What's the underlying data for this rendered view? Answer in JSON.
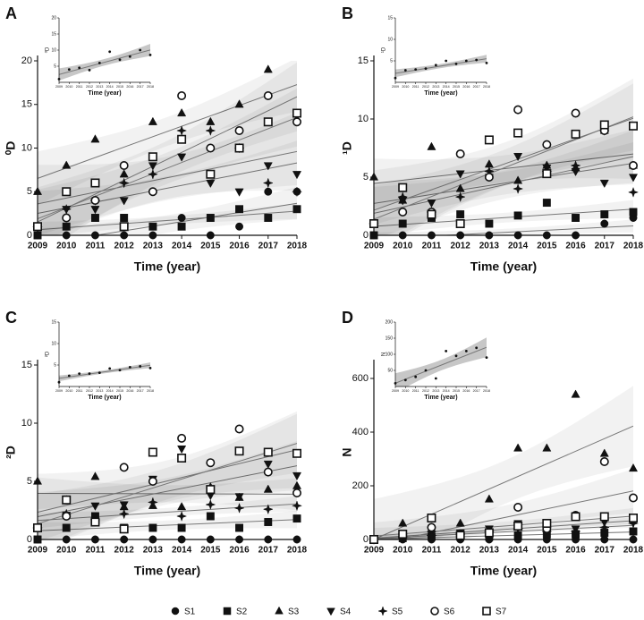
{
  "legend": [
    {
      "name": "S1",
      "marker": "circle",
      "color": "#111111"
    },
    {
      "name": "S2",
      "marker": "square",
      "color": "#111111"
    },
    {
      "name": "S3",
      "marker": "triangle",
      "color": "#111111"
    },
    {
      "name": "S4",
      "marker": "triangle-down",
      "color": "#111111"
    },
    {
      "name": "S5",
      "marker": "star",
      "color": "#111111"
    },
    {
      "name": "S6",
      "marker": "open-circle",
      "color": "#111111"
    },
    {
      "name": "S7",
      "marker": "open-square",
      "color": "#111111"
    }
  ],
  "chart_data": [
    {
      "type": "scatter",
      "label": "A",
      "xlabel": "Time (year)",
      "ylabel": "⁰D",
      "x": [
        2009,
        2010,
        2011,
        2012,
        2013,
        2014,
        2015,
        2016,
        2017,
        2018
      ],
      "xlim": [
        2009,
        2018
      ],
      "xticks": [
        2009,
        2010,
        2011,
        2012,
        2013,
        2014,
        2015,
        2016,
        2017,
        2018
      ],
      "ylim": [
        0,
        20
      ],
      "yticks": [
        0,
        5,
        10,
        15,
        20
      ],
      "series": [
        {
          "values": [
            0,
            0,
            0,
            0,
            0,
            2,
            0,
            1,
            5,
            5
          ]
        },
        {
          "values": [
            0,
            1,
            2,
            2,
            1,
            1,
            2,
            3,
            2,
            3
          ]
        },
        {
          "values": [
            5,
            8,
            11,
            7,
            13,
            14,
            13,
            15,
            19,
            14
          ]
        },
        {
          "values": [
            1,
            3,
            3,
            4,
            8,
            9,
            6,
            5,
            8,
            7
          ]
        },
        {
          "values": [
            1,
            3,
            4,
            6,
            7,
            12,
            12,
            10,
            6,
            5
          ]
        },
        {
          "values": [
            1,
            2,
            4,
            8,
            5,
            16,
            10,
            12,
            16,
            13
          ]
        },
        {
          "values": [
            1,
            5,
            6,
            1,
            9,
            11,
            7,
            10,
            13,
            14
          ]
        }
      ],
      "inset": {
        "type": "scatter",
        "xlabel": "Time (year)",
        "ylabel": "⁰D",
        "x": [
          2009,
          2010,
          2011,
          2012,
          2013,
          2014,
          2015,
          2016,
          2017,
          2018
        ],
        "xlim": [
          2009,
          2018
        ],
        "xticks": [
          2009,
          2010,
          2011,
          2012,
          2013,
          2014,
          2015,
          2016,
          2017,
          2018
        ],
        "ylim": [
          0,
          20
        ],
        "yticks": [
          5,
          10,
          15,
          20
        ],
        "values": [
          1,
          4,
          4.5,
          3.8,
          6,
          9.5,
          7,
          8,
          10,
          8.5
        ]
      }
    },
    {
      "type": "scatter",
      "label": "B",
      "xlabel": "Time (year)",
      "ylabel": "¹D",
      "x": [
        2009,
        2010,
        2011,
        2012,
        2013,
        2014,
        2015,
        2016,
        2017,
        2018
      ],
      "xlim": [
        2009,
        2018
      ],
      "xticks": [
        2009,
        2010,
        2011,
        2012,
        2013,
        2014,
        2015,
        2016,
        2017,
        2018
      ],
      "ylim": [
        0,
        15
      ],
      "yticks": [
        0,
        5,
        10,
        15
      ],
      "series": [
        {
          "values": [
            0,
            0,
            0,
            0,
            0,
            0,
            0,
            0,
            1,
            1.5
          ]
        },
        {
          "values": [
            0,
            1,
            1.5,
            1.8,
            1,
            1.7,
            2.8,
            1.5,
            1.8,
            2
          ]
        },
        {
          "values": [
            5,
            3,
            7.6,
            4,
            6.1,
            4.7,
            6,
            5.8,
            9,
            6
          ]
        },
        {
          "values": [
            1,
            3,
            2.8,
            5.3,
            5,
            6.8,
            5.8,
            5.5,
            4.5,
            5
          ]
        },
        {
          "values": [
            1,
            3.3,
            2,
            3.3,
            5.5,
            4,
            5.5,
            6,
            9,
            3.7
          ]
        },
        {
          "values": [
            1,
            2,
            2,
            7,
            5,
            10.8,
            7.8,
            10.5,
            9,
            6
          ]
        },
        {
          "values": [
            1,
            4.1,
            1.8,
            1,
            8.2,
            8.8,
            5.3,
            8.7,
            9.5,
            9.4
          ]
        }
      ],
      "inset": {
        "type": "scatter",
        "xlabel": "Time (year)",
        "ylabel": "¹D",
        "x": [
          2009,
          2010,
          2011,
          2012,
          2013,
          2014,
          2015,
          2016,
          2017,
          2018
        ],
        "xlim": [
          2009,
          2018
        ],
        "xticks": [
          2009,
          2010,
          2011,
          2012,
          2013,
          2014,
          2015,
          2016,
          2017,
          2018
        ],
        "ylim": [
          0,
          15
        ],
        "yticks": [
          5,
          10,
          15
        ],
        "values": [
          1,
          2.8,
          3,
          3.2,
          4,
          5,
          4.3,
          5,
          5.2,
          4.5
        ]
      }
    },
    {
      "type": "scatter",
      "label": "C",
      "xlabel": "Time (year)",
      "ylabel": "²D",
      "x": [
        2009,
        2010,
        2011,
        2012,
        2013,
        2014,
        2015,
        2016,
        2017,
        2018
      ],
      "xlim": [
        2009,
        2018
      ],
      "xticks": [
        2009,
        2010,
        2011,
        2012,
        2013,
        2014,
        2015,
        2016,
        2017,
        2018
      ],
      "ylim": [
        0,
        15
      ],
      "yticks": [
        0,
        5,
        10,
        15
      ],
      "series": [
        {
          "values": [
            0,
            0,
            0,
            0,
            0,
            0,
            0,
            0,
            0,
            0
          ]
        },
        {
          "values": [
            0,
            1,
            2,
            1,
            1,
            1,
            2,
            1,
            1.5,
            1.8
          ]
        },
        {
          "values": [
            5,
            3.4,
            5.4,
            2.8,
            2.9,
            2.8,
            4.5,
            3.6,
            4.3,
            4.6
          ]
        },
        {
          "values": [
            1,
            2.1,
            2.9,
            3,
            5.2,
            7.8,
            3.8,
            3.7,
            6.5,
            5.5
          ]
        },
        {
          "values": [
            1,
            2.2,
            1.7,
            2.2,
            3.2,
            2,
            3,
            2.7,
            2.6,
            2.9
          ]
        },
        {
          "values": [
            1,
            2,
            1.5,
            6.2,
            5,
            8.7,
            6.6,
            9.5,
            5.8,
            4
          ]
        },
        {
          "values": [
            1,
            3.4,
            1.5,
            0.9,
            7.5,
            7,
            4.3,
            7.6,
            7.5,
            7.4
          ]
        }
      ],
      "inset": {
        "type": "scatter",
        "xlabel": "Time (year)",
        "ylabel": "²D",
        "x": [
          2009,
          2010,
          2011,
          2012,
          2013,
          2014,
          2015,
          2016,
          2017,
          2018
        ],
        "xlim": [
          2009,
          2018
        ],
        "xticks": [
          2009,
          2010,
          2011,
          2012,
          2013,
          2014,
          2015,
          2016,
          2017,
          2018
        ],
        "ylim": [
          0,
          15
        ],
        "yticks": [
          5,
          10,
          15
        ],
        "values": [
          1,
          2.5,
          3,
          3,
          3.2,
          4.2,
          3.8,
          4.5,
          4.7,
          4.3
        ]
      }
    },
    {
      "type": "scatter",
      "label": "D",
      "xlabel": "Time (year)",
      "ylabel": "N",
      "x": [
        2009,
        2010,
        2011,
        2012,
        2013,
        2014,
        2015,
        2016,
        2017,
        2018
      ],
      "xlim": [
        2009,
        2018
      ],
      "xticks": [
        2009,
        2010,
        2011,
        2012,
        2013,
        2014,
        2015,
        2016,
        2017,
        2018
      ],
      "ylim": [
        0,
        650
      ],
      "yticks": [
        0,
        200,
        400,
        600
      ],
      "series": [
        {
          "values": [
            0,
            0,
            0,
            0,
            0,
            0,
            0,
            0,
            0,
            0
          ]
        },
        {
          "values": [
            0,
            5,
            10,
            10,
            10,
            15,
            20,
            20,
            25,
            30
          ]
        },
        {
          "values": [
            0,
            60,
            40,
            60,
            150,
            340,
            340,
            540,
            320,
            265
          ]
        },
        {
          "values": [
            0,
            10,
            20,
            25,
            40,
            60,
            45,
            40,
            65,
            70
          ]
        },
        {
          "values": [
            0,
            10,
            15,
            20,
            30,
            40,
            30,
            30,
            45,
            60
          ]
        },
        {
          "values": [
            0,
            20,
            45,
            20,
            30,
            120,
            40,
            90,
            290,
            155
          ]
        },
        {
          "values": [
            0,
            20,
            80,
            15,
            25,
            50,
            60,
            85,
            85,
            80
          ]
        }
      ],
      "inset": {
        "type": "scatter",
        "xlabel": "Time (year)",
        "ylabel": "N",
        "x": [
          2009,
          2010,
          2011,
          2012,
          2013,
          2014,
          2015,
          2016,
          2017,
          2018
        ],
        "xlim": [
          2009,
          2018
        ],
        "xticks": [
          2009,
          2010,
          2011,
          2012,
          2013,
          2014,
          2015,
          2016,
          2017,
          2018
        ],
        "ylim": [
          0,
          200
        ],
        "yticks": [
          50,
          100,
          150,
          200
        ],
        "values": [
          10,
          20,
          30,
          50,
          25,
          110,
          95,
          110,
          120,
          90
        ]
      }
    }
  ]
}
